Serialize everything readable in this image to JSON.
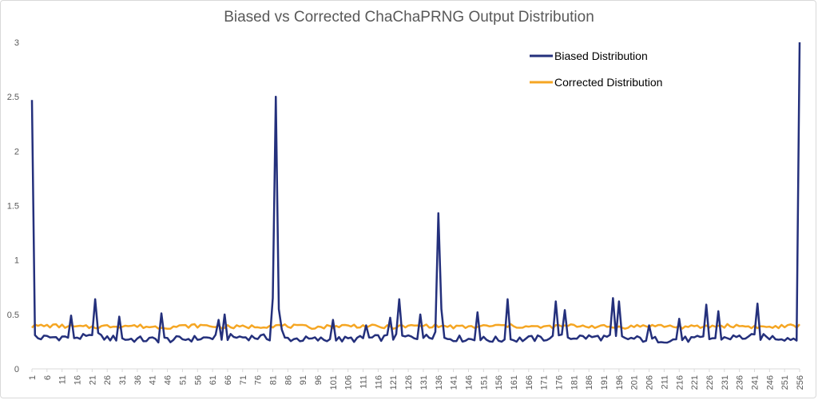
{
  "chart_data": {
    "type": "line",
    "title": "Biased vs Corrected ChaChaPRNG Output Distribution",
    "xlabel": "",
    "ylabel": "",
    "xlim": [
      1,
      256
    ],
    "ylim": [
      0,
      3
    ],
    "yticks": [
      0,
      0.5,
      1,
      1.5,
      2,
      2.5,
      3
    ],
    "ytick_labels": [
      "0",
      "0.5",
      "1",
      "1.5",
      "2",
      "2.5",
      "3"
    ],
    "xticks": [
      1,
      6,
      11,
      16,
      21,
      26,
      31,
      36,
      41,
      46,
      51,
      56,
      61,
      66,
      71,
      76,
      81,
      86,
      91,
      96,
      101,
      106,
      111,
      116,
      121,
      126,
      131,
      136,
      141,
      146,
      151,
      156,
      161,
      166,
      171,
      176,
      181,
      186,
      191,
      196,
      201,
      206,
      211,
      216,
      221,
      226,
      231,
      236,
      241,
      246,
      251,
      256
    ],
    "grid": false,
    "legend_position": "top-right",
    "series": [
      {
        "name": "Biased Distribution",
        "color": "#24307c",
        "baseline": 0.28,
        "peaks": [
          [
            1,
            2.47
          ],
          [
            2,
            0.31
          ],
          [
            14,
            0.49
          ],
          [
            22,
            0.64
          ],
          [
            23,
            0.33
          ],
          [
            30,
            0.48
          ],
          [
            44,
            0.51
          ],
          [
            63,
            0.45
          ],
          [
            65,
            0.5
          ],
          [
            81,
            0.65
          ],
          [
            82,
            2.5
          ],
          [
            83,
            0.55
          ],
          [
            84,
            0.36
          ],
          [
            101,
            0.45
          ],
          [
            112,
            0.4
          ],
          [
            120,
            0.47
          ],
          [
            123,
            0.64
          ],
          [
            130,
            0.5
          ],
          [
            135,
            0.34
          ],
          [
            136,
            1.43
          ],
          [
            137,
            0.55
          ],
          [
            149,
            0.52
          ],
          [
            159,
            0.64
          ],
          [
            175,
            0.62
          ],
          [
            178,
            0.54
          ],
          [
            194,
            0.65
          ],
          [
            196,
            0.62
          ],
          [
            206,
            0.4
          ],
          [
            216,
            0.46
          ],
          [
            225,
            0.59
          ],
          [
            229,
            0.53
          ],
          [
            242,
            0.6
          ],
          [
            255,
            0.26
          ],
          [
            256,
            3.0
          ]
        ]
      },
      {
        "name": "Corrected Distribution",
        "color": "#f5a623",
        "baseline": 0.39,
        "peaks": []
      }
    ]
  }
}
